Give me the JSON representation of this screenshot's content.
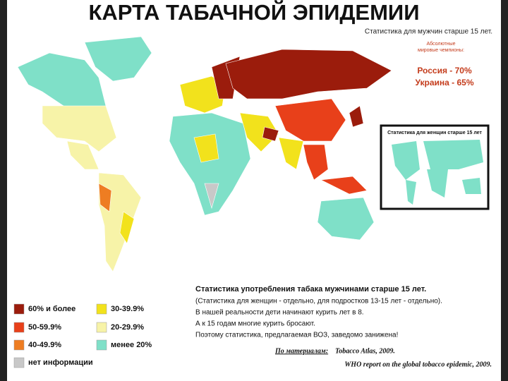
{
  "header": {
    "title": "КАРТА ТАБАЧНОЙ ЭПИДЕМИИ",
    "subtitle": "Статистика для мужчин старше 15 лет."
  },
  "champions": {
    "label": "Абсолютные мировые чемпионы:",
    "lines": [
      "Россия - 70%",
      "Украина - 65%"
    ]
  },
  "inset": {
    "title": "Статистика для женщин старше 15 лет"
  },
  "legend": [
    {
      "label": "60% и более",
      "color": "#9b1c0c"
    },
    {
      "label": "50-59.9%",
      "color": "#e8401a"
    },
    {
      "label": "40-49.9%",
      "color": "#ee7d22"
    },
    {
      "label": "нет информации",
      "color": "#c8c8c8"
    },
    {
      "label": "30-39.9%",
      "color": "#f2e21c"
    },
    {
      "label": "20-29.9%",
      "color": "#f7f3a8"
    },
    {
      "label": "менее 20%",
      "color": "#7fe0c8"
    }
  ],
  "note": {
    "heading": "Статистика употребления табака мужчинами старше 15 лет.",
    "lines": [
      "(Статистика для женщин - отдельно, для подростков 13-15 лет - отдельно).",
      "В нашей реальности дети начинают курить лет в 8.",
      "А к 15 годам многие курить бросают.",
      "Поэтому статистика, предлагаемая ВОЗ, заведомо занижена!"
    ]
  },
  "source": {
    "prefix": "По материалам:",
    "lines": [
      "Tobacco Atlas, 2009.",
      "WHO report on the global tobacco epidemic, 2009."
    ]
  }
}
